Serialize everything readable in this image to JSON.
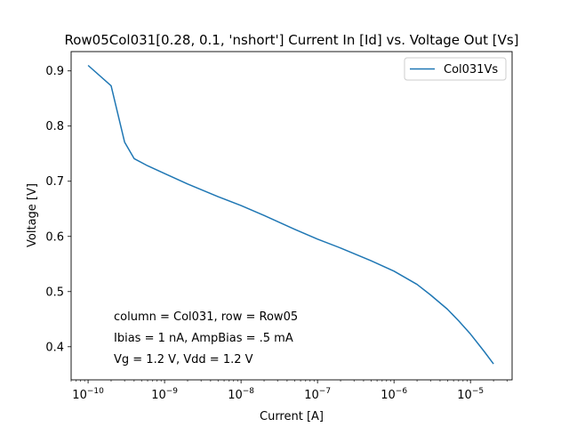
{
  "chart_data": {
    "type": "line",
    "title": "Row05Col031[0.28, 0.1, 'nshort'] Current In [Id] vs. Voltage Out [Vs]",
    "xlabel": "Current [A]",
    "ylabel": "Voltage [V]",
    "xscale": "log",
    "xlim": [
      6e-11,
      3.5e-05
    ],
    "ylim": [
      0.34,
      0.935
    ],
    "x_ticks": [
      1e-10,
      1e-09,
      1e-08,
      1e-07,
      1e-06,
      1e-05
    ],
    "x_tick_labels": [
      {
        "base": "10",
        "exp": "−10"
      },
      {
        "base": "10",
        "exp": "−9"
      },
      {
        "base": "10",
        "exp": "−8"
      },
      {
        "base": "10",
        "exp": "−7"
      },
      {
        "base": "10",
        "exp": "−6"
      },
      {
        "base": "10",
        "exp": "−5"
      }
    ],
    "y_ticks": [
      0.4,
      0.5,
      0.6,
      0.7,
      0.8,
      0.9
    ],
    "y_tick_labels": [
      "0.4",
      "0.5",
      "0.6",
      "0.7",
      "0.8",
      "0.9"
    ],
    "grid": false,
    "legend_position": "top-right",
    "series": [
      {
        "name": "Col031Vs",
        "color": "#1f77b4",
        "x": [
          1e-10,
          2e-10,
          3e-10,
          4e-10,
          6e-10,
          1e-09,
          2e-09,
          5e-09,
          1e-08,
          2e-08,
          5e-08,
          1e-07,
          2e-07,
          5e-07,
          1e-06,
          2e-06,
          3e-06,
          5e-06,
          7e-06,
          1e-05,
          1.5e-05,
          2e-05
        ],
        "y": [
          0.91,
          0.873,
          0.771,
          0.741,
          0.728,
          0.714,
          0.695,
          0.672,
          0.656,
          0.638,
          0.613,
          0.595,
          0.579,
          0.556,
          0.537,
          0.513,
          0.494,
          0.468,
          0.447,
          0.423,
          0.392,
          0.369
        ]
      }
    ],
    "annotations": [
      "column = Col031, row = Row05",
      "Ibias = 1 nA, AmpBias = .5 mA",
      "Vg = 1.2 V, Vdd = 1.2 V"
    ]
  }
}
